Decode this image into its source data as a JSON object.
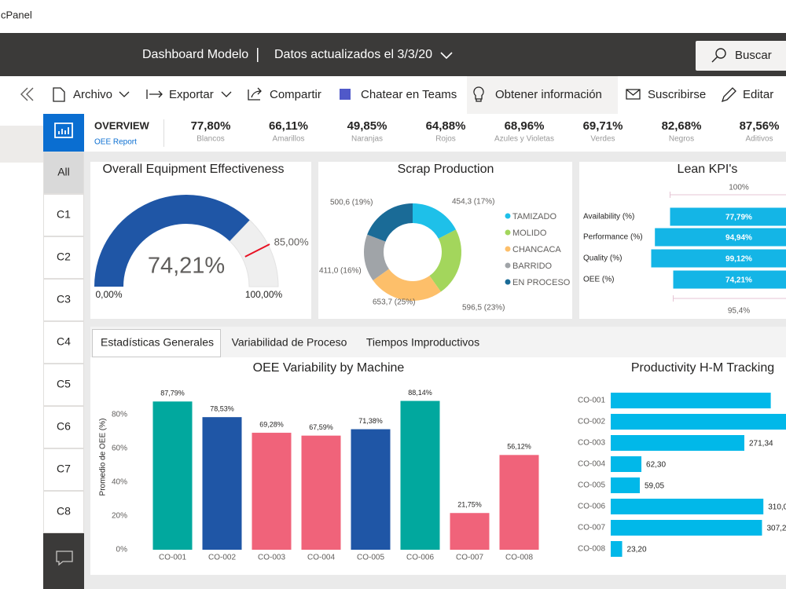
{
  "app": "cPanel",
  "header": {
    "title": "Dashboard Modelo",
    "updated": "Datos actualizados el 3/3/20",
    "search": "Buscar"
  },
  "toolbar": [
    "Archivo",
    "Exportar",
    "Compartir",
    "Chatear en Teams",
    "Obtener información",
    "Suscribirse",
    "Editar"
  ],
  "overview": {
    "title": "OVERVIEW",
    "subtitle": "OEE Report",
    "kpis": [
      {
        "value": "77,80%",
        "label": "Blancos"
      },
      {
        "value": "66,11%",
        "label": "Amarillos"
      },
      {
        "value": "49,85%",
        "label": "Naranjas"
      },
      {
        "value": "64,88%",
        "label": "Rojos"
      },
      {
        "value": "68,96%",
        "label": "Azules y Violetas"
      },
      {
        "value": "69,71%",
        "label": "Verdes"
      },
      {
        "value": "82,68%",
        "label": "Negros"
      },
      {
        "value": "87,56%",
        "label": "Aditivos"
      }
    ]
  },
  "sidebar": {
    "pages": [
      "All",
      "C1",
      "C2",
      "C3",
      "C4",
      "C5",
      "C6",
      "C7",
      "C8"
    ]
  },
  "tabs": [
    "Estadísticas Generales",
    "Variabilidad de Proceso",
    "Tiempos Improductivos"
  ],
  "chart_data": [
    {
      "type": "gauge",
      "title": "Overall Equipment Effectiveness",
      "values": [
        74.21
      ],
      "value_labels": [
        "74,21%"
      ],
      "ylim": [
        0,
        100
      ],
      "yticks": [
        {
          "value": 0,
          "label": "0,00%"
        },
        {
          "value": 100,
          "label": "100,00%"
        }
      ],
      "target": {
        "value": 85,
        "label": "85,00%"
      },
      "color": "#1f56a6",
      "track_color": "#efefef",
      "target_color": "#e81123"
    },
    {
      "type": "donut",
      "title": "Scrap Production",
      "categories": [
        "TAMIZADO",
        "MOLIDO",
        "CHANCACA",
        "BARRIDO",
        "EN PROCESO"
      ],
      "values": [
        454.3,
        596.5,
        653.7,
        411.0,
        500.6
      ],
      "value_labels": [
        "454,3 (17%)",
        "596,5 (23%)",
        "653,7 (25%)",
        "411,0 (16%)",
        "500,6 (19%)"
      ],
      "colors": [
        "#1ec0e9",
        "#a3d65c",
        "#fdbf6a",
        "#a0a4a8",
        "#1a6b97"
      ]
    },
    {
      "type": "funnel",
      "title": "Lean KPI's",
      "categories": [
        "Availability (%)",
        "Performance (%)",
        "Quality (%)",
        "OEE (%)"
      ],
      "values": [
        77.79,
        94.94,
        99.12,
        74.21
      ],
      "value_labels": [
        "77,79%",
        "94,94%",
        "99,12%",
        "74,21%"
      ],
      "xlim": [
        0,
        100
      ],
      "annotations": [
        "100%",
        "95,4%"
      ],
      "color": "#14b5e6"
    },
    {
      "type": "bar",
      "title": "OEE Variability by Machine",
      "y_label": "Promedio de OEE (%)",
      "categories": [
        "CO-001",
        "CO-002",
        "CO-003",
        "CO-004",
        "CO-005",
        "CO-006",
        "CO-007",
        "CO-008"
      ],
      "values": [
        87.79,
        78.53,
        69.28,
        67.59,
        71.38,
        88.14,
        21.75,
        56.12
      ],
      "value_labels": [
        "87,79%",
        "78,53%",
        "69,28%",
        "67,59%",
        "71,38%",
        "88,14%",
        "21,75%",
        "56,12%"
      ],
      "colors": [
        "#01a89e",
        "#1f56a6",
        "#f0637a",
        "#f0637a",
        "#1f56a6",
        "#01a89e",
        "#f0637a",
        "#f0637a"
      ],
      "ylim": [
        0,
        100
      ],
      "yticks": [
        {
          "value": 0,
          "label": "0%"
        },
        {
          "value": 20,
          "label": "20%"
        },
        {
          "value": 40,
          "label": "40%"
        },
        {
          "value": 60,
          "label": "60%"
        },
        {
          "value": 80,
          "label": "80%"
        }
      ]
    },
    {
      "type": "bar",
      "orientation": "horizontal",
      "title": "Productivity H-M Tracking",
      "categories": [
        "CO-001",
        "CO-002",
        "CO-003",
        "CO-004",
        "CO-005",
        "CO-006",
        "CO-007",
        "CO-008"
      ],
      "values": [
        325,
        385,
        271.34,
        62.3,
        59.05,
        310.0,
        307.2,
        23.2
      ],
      "value_labels": [
        null,
        null,
        "271,34",
        "62,30",
        "59,05",
        "310,0",
        "307,2",
        "23,20"
      ],
      "xlim": [
        0,
        400
      ],
      "color": "#01b8e9"
    }
  ]
}
